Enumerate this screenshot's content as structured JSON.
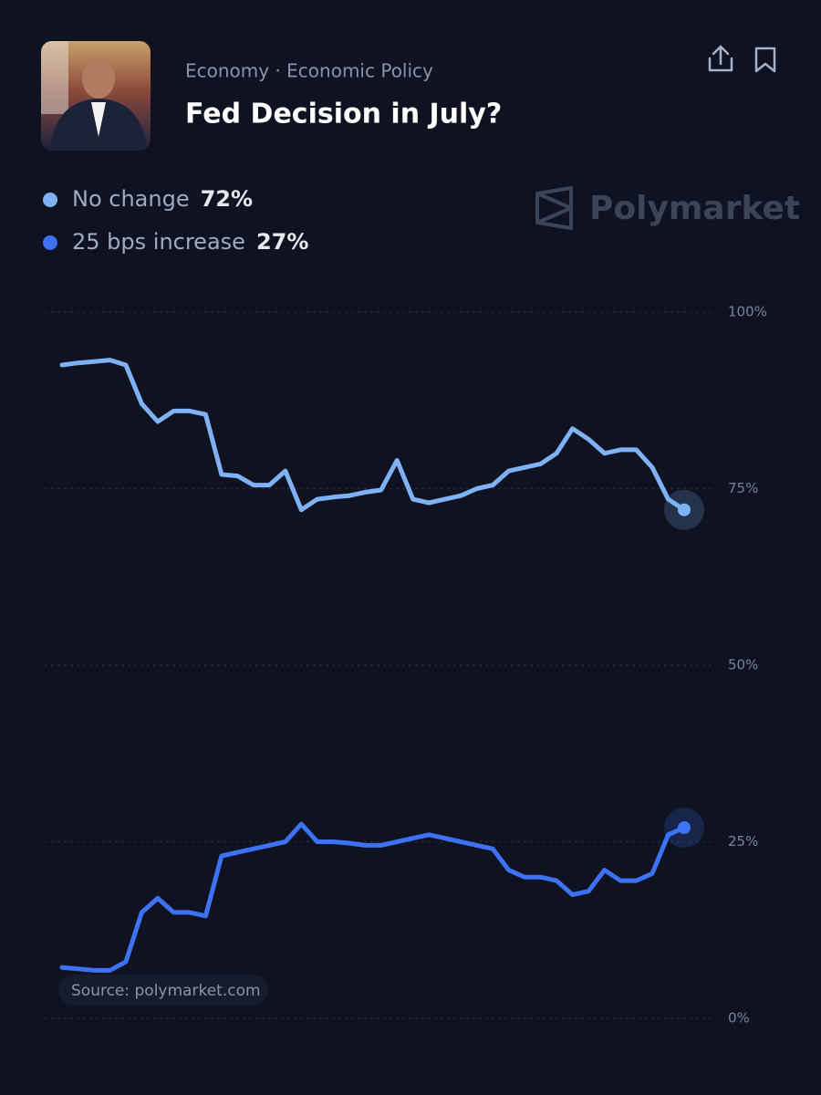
{
  "header": {
    "category": "Economy · Economic Policy",
    "title": "Fed Decision in July?"
  },
  "watermark": "Polymarket",
  "source": "Source: polymarket.com",
  "chart_data": {
    "type": "line",
    "series": [
      {
        "name": "No change",
        "color": "#7fb2f5",
        "current_label": "72%",
        "values": [
          92.5,
          92.8,
          93,
          93.2,
          92.5,
          87,
          84.5,
          86,
          86,
          85.5,
          77,
          76.8,
          75.5,
          75.5,
          77.5,
          72,
          73.5,
          73.8,
          74,
          74.5,
          74.8,
          79,
          73.5,
          73,
          73.5,
          74,
          75,
          75.5,
          77.5,
          78,
          78.5,
          80,
          83.5,
          82,
          80,
          80.5,
          80.5,
          78,
          73.5,
          72
        ]
      },
      {
        "name": "25 bps increase",
        "color": "#3d72f5",
        "current_label": "27%",
        "values": [
          7.2,
          7,
          6.8,
          6.8,
          8,
          15,
          17,
          15,
          15,
          14.5,
          23,
          23.5,
          24,
          24.5,
          25,
          27.5,
          25,
          25,
          24.8,
          24.5,
          24.5,
          25,
          25.5,
          26,
          25.5,
          25,
          24.5,
          24,
          21,
          20,
          20,
          19.5,
          17.5,
          18,
          21,
          19.5,
          19.5,
          20.5,
          26,
          27
        ]
      }
    ],
    "ylim": [
      0,
      100
    ],
    "yticks": [
      {
        "value": 100,
        "label": "100%"
      },
      {
        "value": 75,
        "label": "75%"
      },
      {
        "value": 50,
        "label": "50%"
      },
      {
        "value": 25,
        "label": "25%"
      },
      {
        "value": 0,
        "label": "0%"
      }
    ],
    "grid": true
  }
}
